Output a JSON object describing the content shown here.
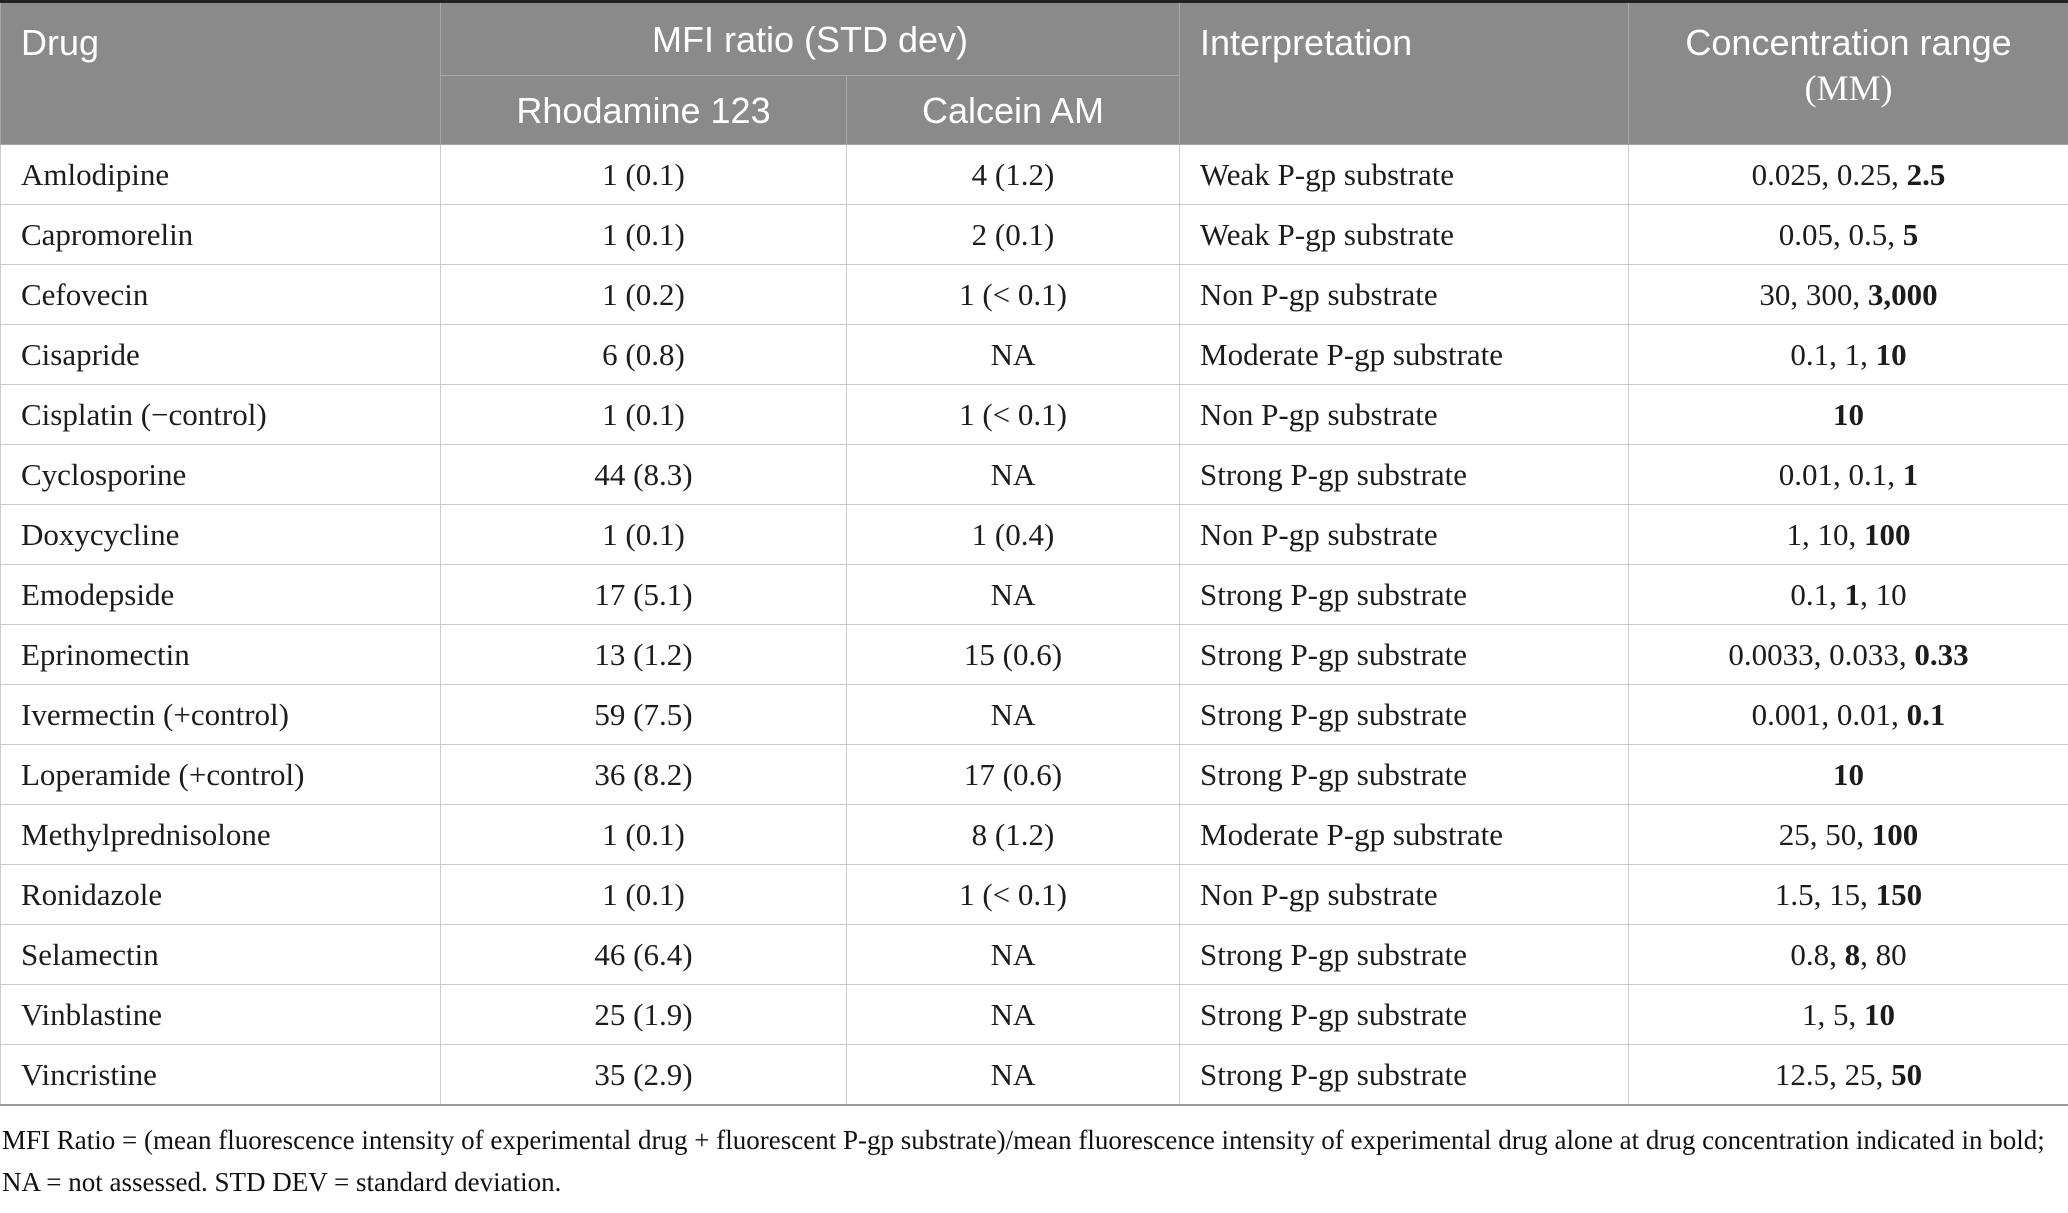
{
  "table": {
    "header": {
      "drug": "Drug",
      "mfi_group": "MFI ratio (STD dev)",
      "rhodamine": "Rhodamine 123",
      "calcein": "Calcein AM",
      "interpretation": "Interpretation",
      "concentration_line1": "Concentration range",
      "concentration_line2": "(MM)"
    },
    "rows": [
      {
        "drug": "Amlodipine",
        "rhodamine": "1 (0.1)",
        "calcein": "4 (1.2)",
        "interpretation": "Weak P-gp substrate",
        "concentration": [
          {
            "text": "0.025, 0.25, "
          },
          {
            "text": "2.5",
            "bold": true
          }
        ]
      },
      {
        "drug": "Capromorelin",
        "rhodamine": "1 (0.1)",
        "calcein": "2 (0.1)",
        "interpretation": "Weak P-gp substrate",
        "concentration": [
          {
            "text": "0.05, 0.5, "
          },
          {
            "text": "5",
            "bold": true
          }
        ]
      },
      {
        "drug": "Cefovecin",
        "rhodamine": "1 (0.2)",
        "calcein": "1 (< 0.1)",
        "interpretation": "Non P-gp substrate",
        "concentration": [
          {
            "text": "30, 300, "
          },
          {
            "text": "3,000",
            "bold": true
          }
        ]
      },
      {
        "drug": "Cisapride",
        "rhodamine": "6 (0.8)",
        "calcein": "NA",
        "interpretation": "Moderate P-gp substrate",
        "concentration": [
          {
            "text": "0.1, 1, "
          },
          {
            "text": "10",
            "bold": true
          }
        ]
      },
      {
        "drug": "Cisplatin (−control)",
        "rhodamine": "1 (0.1)",
        "calcein": "1 (< 0.1)",
        "interpretation": "Non P-gp substrate",
        "concentration": [
          {
            "text": "10",
            "bold": true
          }
        ]
      },
      {
        "drug": "Cyclosporine",
        "rhodamine": "44 (8.3)",
        "calcein": "NA",
        "interpretation": "Strong P-gp substrate",
        "concentration": [
          {
            "text": "0.01, 0.1, "
          },
          {
            "text": "1",
            "bold": true
          }
        ]
      },
      {
        "drug": "Doxycycline",
        "rhodamine": "1 (0.1)",
        "calcein": "1 (0.4)",
        "interpretation": "Non P-gp substrate",
        "concentration": [
          {
            "text": "1, 10, "
          },
          {
            "text": "100",
            "bold": true
          }
        ]
      },
      {
        "drug": "Emodepside",
        "rhodamine": "17 (5.1)",
        "calcein": "NA",
        "interpretation": "Strong P-gp substrate",
        "concentration": [
          {
            "text": "0.1, "
          },
          {
            "text": "1",
            "bold": true
          },
          {
            "text": ", 10"
          }
        ]
      },
      {
        "drug": "Eprinomectin",
        "rhodamine": "13 (1.2)",
        "calcein": "15 (0.6)",
        "interpretation": "Strong P-gp substrate",
        "concentration": [
          {
            "text": "0.0033, 0.033, "
          },
          {
            "text": "0.33",
            "bold": true
          }
        ]
      },
      {
        "drug": "Ivermectin (+control)",
        "rhodamine": "59 (7.5)",
        "calcein": "NA",
        "interpretation": "Strong P-gp substrate",
        "concentration": [
          {
            "text": "0.001, 0.01, "
          },
          {
            "text": "0.1",
            "bold": true
          }
        ]
      },
      {
        "drug": "Loperamide (+control)",
        "rhodamine": "36 (8.2)",
        "calcein": "17 (0.6)",
        "interpretation": "Strong P-gp substrate",
        "concentration": [
          {
            "text": "10",
            "bold": true
          }
        ]
      },
      {
        "drug": "Methylprednisolone",
        "rhodamine": "1 (0.1)",
        "calcein": "8 (1.2)",
        "interpretation": "Moderate P-gp substrate",
        "concentration": [
          {
            "text": "25, 50, "
          },
          {
            "text": "100",
            "bold": true
          }
        ]
      },
      {
        "drug": "Ronidazole",
        "rhodamine": "1 (0.1)",
        "calcein": "1 (< 0.1)",
        "interpretation": "Non P-gp substrate",
        "concentration": [
          {
            "text": "1.5, 15, "
          },
          {
            "text": "150",
            "bold": true
          }
        ]
      },
      {
        "drug": "Selamectin",
        "rhodamine": "46 (6.4)",
        "calcein": "NA",
        "interpretation": "Strong P-gp substrate",
        "concentration": [
          {
            "text": "0.8, "
          },
          {
            "text": "8",
            "bold": true
          },
          {
            "text": ", 80"
          }
        ]
      },
      {
        "drug": "Vinblastine",
        "rhodamine": "25 (1.9)",
        "calcein": "NA",
        "interpretation": "Strong P-gp substrate",
        "concentration": [
          {
            "text": "1, 5, "
          },
          {
            "text": "10",
            "bold": true
          }
        ]
      },
      {
        "drug": "Vincristine",
        "rhodamine": "35 (2.9)",
        "calcein": "NA",
        "interpretation": "Strong P-gp substrate",
        "concentration": [
          {
            "text": "12.5, 25, "
          },
          {
            "text": "50",
            "bold": true
          }
        ]
      }
    ]
  },
  "footnote": {
    "line1": "MFI Ratio = (mean fluorescence intensity of experimental drug + fluorescent P-gp substrate)/mean fluorescence intensity of experimental drug alone at drug concentration indicated in bold;",
    "line2": "NA = not assessed. STD DEV = standard deviation."
  },
  "colors": {
    "header_bg": "#8a8a8a",
    "header_text": "#ffffff",
    "body_text": "#1c1c1c",
    "row_border": "#cbcbcb",
    "header_border": "#a6a6a6",
    "top_border": "#222222",
    "bottom_border": "#9a9a9a"
  }
}
